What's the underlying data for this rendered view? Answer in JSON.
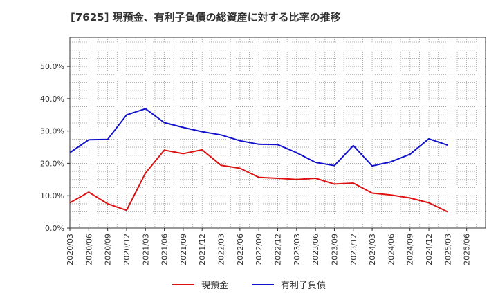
{
  "title": "[7625]  現預金、有利子負債の総資産に対する比率の推移",
  "chart_data": {
    "type": "line",
    "title": "[7625]  現預金、有利子負債の総資産に対する比率の推移",
    "xlabel": "",
    "ylabel": "",
    "ylim": [
      0,
      59
    ],
    "yticks": [
      0,
      10,
      20,
      30,
      40,
      50
    ],
    "ytick_labels": [
      "0.0%",
      "10.0%",
      "20.0%",
      "30.0%",
      "40.0%",
      "50.0%"
    ],
    "grid": true,
    "legend_position": "bottom-center",
    "categories": [
      "2020/03",
      "2020/06",
      "2020/09",
      "2020/12",
      "2021/03",
      "2021/06",
      "2021/09",
      "2021/12",
      "2022/03",
      "2022/06",
      "2022/09",
      "2022/12",
      "2023/03",
      "2023/06",
      "2023/09",
      "2023/12",
      "2024/03",
      "2024/06",
      "2024/09",
      "2024/12",
      "2025/03",
      "2025/06"
    ],
    "series": [
      {
        "name": "現預金",
        "color": "#dd1111",
        "values": [
          7.8,
          11.1,
          7.5,
          5.5,
          17.0,
          24.1,
          23.0,
          24.2,
          19.4,
          18.5,
          15.7,
          15.4,
          15.0,
          15.4,
          13.6,
          13.9,
          10.8,
          10.2,
          9.3,
          7.8,
          5.0,
          null
        ]
      },
      {
        "name": "有利子負債",
        "color": "#1111cc",
        "values": [
          23.3,
          27.3,
          27.4,
          35.0,
          36.9,
          32.6,
          31.1,
          29.8,
          28.8,
          27.0,
          25.9,
          25.8,
          23.3,
          20.3,
          19.3,
          25.5,
          19.2,
          20.5,
          22.8,
          27.6,
          25.6,
          null
        ]
      }
    ]
  }
}
